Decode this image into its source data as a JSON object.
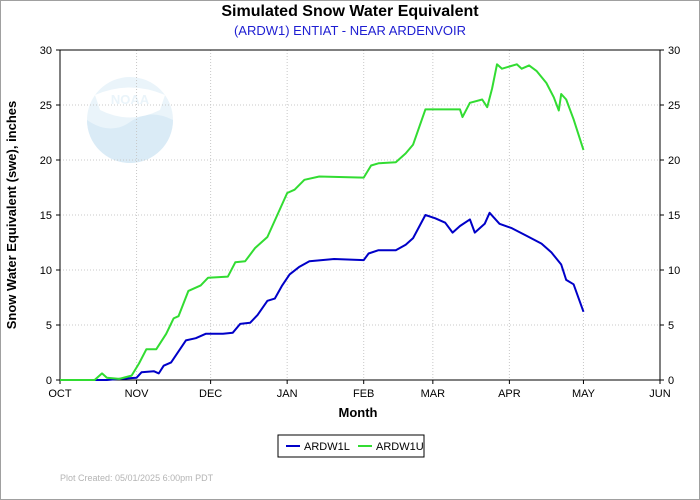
{
  "chart_data": {
    "type": "line",
    "title": "Simulated Snow Water Equivalent",
    "subtitle": "(ARDW1) ENTIAT - NEAR ARDENVOIR",
    "xlabel": "Month",
    "ylabel": "Snow Water Equivalent (swe),  inches",
    "ylim": [
      0,
      30
    ],
    "yticks": [
      0,
      5,
      10,
      15,
      20,
      25,
      30
    ],
    "xlim": [
      "2024-10-01",
      "2025-06-01"
    ],
    "xticks": [
      {
        "date": "2024-10-01",
        "label": "OCT"
      },
      {
        "date": "2024-11-01",
        "label": "NOV"
      },
      {
        "date": "2024-12-01",
        "label": "DEC"
      },
      {
        "date": "2025-01-01",
        "label": "JAN"
      },
      {
        "date": "2025-02-01",
        "label": "FEB"
      },
      {
        "date": "2025-03-01",
        "label": "MAR"
      },
      {
        "date": "2025-04-01",
        "label": "APR"
      },
      {
        "date": "2025-05-01",
        "label": "MAY"
      },
      {
        "date": "2025-06-01",
        "label": "JUN"
      }
    ],
    "grid": true,
    "legend": "bottom-center",
    "series": [
      {
        "name": "ARDW1L",
        "color": "#0000c8",
        "points": [
          [
            "2024-10-01",
            0
          ],
          [
            "2024-10-20",
            0
          ],
          [
            "2024-10-25",
            0.1
          ],
          [
            "2024-11-01",
            0.2
          ],
          [
            "2024-11-03",
            0.7
          ],
          [
            "2024-11-08",
            0.8
          ],
          [
            "2024-11-10",
            0.6
          ],
          [
            "2024-11-12",
            1.3
          ],
          [
            "2024-11-15",
            1.6
          ],
          [
            "2024-11-18",
            2.6
          ],
          [
            "2024-11-21",
            3.6
          ],
          [
            "2024-11-25",
            3.8
          ],
          [
            "2024-11-29",
            4.2
          ],
          [
            "2024-12-06",
            4.2
          ],
          [
            "2024-12-10",
            4.3
          ],
          [
            "2024-12-13",
            5.1
          ],
          [
            "2024-12-17",
            5.2
          ],
          [
            "2024-12-20",
            5.9
          ],
          [
            "2024-12-24",
            7.2
          ],
          [
            "2024-12-27",
            7.4
          ],
          [
            "2024-12-30",
            8.6
          ],
          [
            "2025-01-02",
            9.6
          ],
          [
            "2025-01-06",
            10.3
          ],
          [
            "2025-01-10",
            10.8
          ],
          [
            "2025-01-20",
            11.0
          ],
          [
            "2025-02-01",
            10.9
          ],
          [
            "2025-02-03",
            11.5
          ],
          [
            "2025-02-07",
            11.8
          ],
          [
            "2025-02-14",
            11.8
          ],
          [
            "2025-02-18",
            12.3
          ],
          [
            "2025-02-21",
            12.9
          ],
          [
            "2025-02-26",
            15.0
          ],
          [
            "2025-03-02",
            14.7
          ],
          [
            "2025-03-06",
            14.3
          ],
          [
            "2025-03-09",
            13.4
          ],
          [
            "2025-03-12",
            14.0
          ],
          [
            "2025-03-16",
            14.6
          ],
          [
            "2025-03-18",
            13.4
          ],
          [
            "2025-03-22",
            14.2
          ],
          [
            "2025-03-24",
            15.2
          ],
          [
            "2025-03-28",
            14.2
          ],
          [
            "2025-04-02",
            13.8
          ],
          [
            "2025-04-08",
            13.1
          ],
          [
            "2025-04-14",
            12.4
          ],
          [
            "2025-04-18",
            11.6
          ],
          [
            "2025-04-22",
            10.5
          ],
          [
            "2025-04-24",
            9.1
          ],
          [
            "2025-04-27",
            8.7
          ],
          [
            "2025-05-01",
            6.2
          ]
        ]
      },
      {
        "name": "ARDW1U",
        "color": "#32dc32",
        "points": [
          [
            "2024-10-01",
            0
          ],
          [
            "2024-10-15",
            0
          ],
          [
            "2024-10-18",
            0.6
          ],
          [
            "2024-10-20",
            0.2
          ],
          [
            "2024-10-25",
            0.1
          ],
          [
            "2024-10-30",
            0.4
          ],
          [
            "2024-11-02",
            1.5
          ],
          [
            "2024-11-05",
            2.8
          ],
          [
            "2024-11-09",
            2.8
          ],
          [
            "2024-11-13",
            4.2
          ],
          [
            "2024-11-16",
            5.6
          ],
          [
            "2024-11-18",
            5.8
          ],
          [
            "2024-11-22",
            8.1
          ],
          [
            "2024-11-27",
            8.6
          ],
          [
            "2024-11-30",
            9.3
          ],
          [
            "2024-12-08",
            9.4
          ],
          [
            "2024-12-11",
            10.7
          ],
          [
            "2024-12-15",
            10.8
          ],
          [
            "2024-12-19",
            12.0
          ],
          [
            "2024-12-24",
            13.0
          ],
          [
            "2024-12-28",
            15.0
          ],
          [
            "2025-01-01",
            17.0
          ],
          [
            "2025-01-04",
            17.3
          ],
          [
            "2025-01-08",
            18.2
          ],
          [
            "2025-01-14",
            18.5
          ],
          [
            "2025-02-01",
            18.4
          ],
          [
            "2025-02-04",
            19.5
          ],
          [
            "2025-02-07",
            19.7
          ],
          [
            "2025-02-14",
            19.8
          ],
          [
            "2025-02-18",
            20.6
          ],
          [
            "2025-02-21",
            21.4
          ],
          [
            "2025-02-26",
            24.6
          ],
          [
            "2025-03-06",
            24.6
          ],
          [
            "2025-03-12",
            24.6
          ],
          [
            "2025-03-13",
            23.9
          ],
          [
            "2025-03-16",
            25.2
          ],
          [
            "2025-03-21",
            25.5
          ],
          [
            "2025-03-23",
            24.8
          ],
          [
            "2025-03-25",
            26.5
          ],
          [
            "2025-03-27",
            28.7
          ],
          [
            "2025-03-29",
            28.3
          ],
          [
            "2025-04-01",
            28.5
          ],
          [
            "2025-04-04",
            28.7
          ],
          [
            "2025-04-06",
            28.3
          ],
          [
            "2025-04-09",
            28.6
          ],
          [
            "2025-04-12",
            28.1
          ],
          [
            "2025-04-16",
            27.0
          ],
          [
            "2025-04-19",
            25.7
          ],
          [
            "2025-04-21",
            24.5
          ],
          [
            "2025-04-22",
            26.0
          ],
          [
            "2025-04-24",
            25.5
          ],
          [
            "2025-04-27",
            23.7
          ],
          [
            "2025-05-01",
            20.9
          ]
        ]
      }
    ],
    "footer": "Plot Created: 05/01/2025 6:00pm PDT",
    "watermark": "NOAA"
  }
}
